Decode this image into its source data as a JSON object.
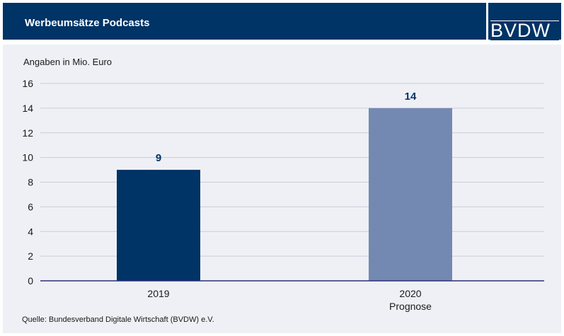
{
  "header": {
    "title": "Werbeumsätze Podcasts",
    "logo": "BVDW"
  },
  "chart_data": {
    "type": "bar",
    "title": "Werbeumsätze Podcasts",
    "ylabel": "Angaben in Mio. Euro",
    "categories": [
      "2019",
      "2020"
    ],
    "category_sublabels": [
      "",
      "Prognose"
    ],
    "values": [
      9,
      14
    ],
    "bar_colors": [
      "#003366",
      "#7489b1"
    ],
    "ylim": [
      0,
      16
    ],
    "yticks": [
      0,
      2,
      4,
      6,
      8,
      10,
      12,
      14,
      16
    ],
    "grid": true,
    "legend": "none"
  },
  "source": "Quelle: Bundesverband Digitale Wirtschaft (BVDW) e.V.",
  "colors": {
    "primary": "#003366",
    "secondary": "#7489b1",
    "panel": "#eff0f5",
    "grid": "#c9cbdb"
  }
}
